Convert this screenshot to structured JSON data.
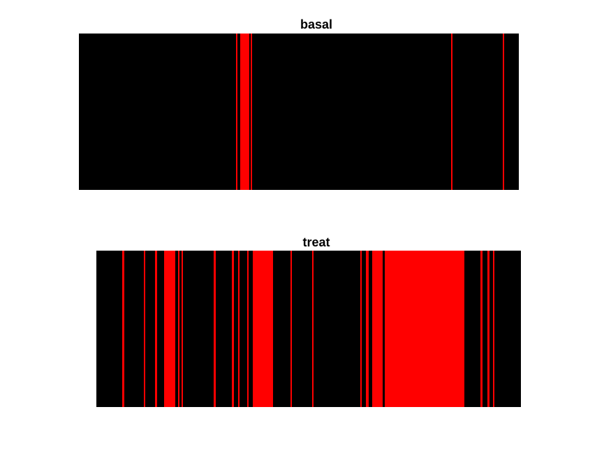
{
  "chart_data": [
    {
      "type": "heatmap",
      "title": "basal",
      "xlabel": "",
      "ylabel": "",
      "x_range": [
        0,
        630
      ],
      "background_color": "#000000",
      "event_color": "#ff0000",
      "grid": false,
      "events": [
        {
          "start": 225,
          "end": 227
        },
        {
          "start": 231,
          "end": 244
        },
        {
          "start": 246,
          "end": 248
        },
        {
          "start": 533,
          "end": 535
        },
        {
          "start": 607,
          "end": 609
        }
      ]
    },
    {
      "type": "heatmap",
      "title": "treat",
      "xlabel": "",
      "ylabel": "",
      "x_range": [
        0,
        608
      ],
      "background_color": "#000000",
      "event_color": "#ff0000",
      "grid": false,
      "events": [
        {
          "start": 37,
          "end": 40
        },
        {
          "start": 68,
          "end": 70
        },
        {
          "start": 84,
          "end": 87
        },
        {
          "start": 97,
          "end": 113
        },
        {
          "start": 117,
          "end": 119
        },
        {
          "start": 122,
          "end": 124
        },
        {
          "start": 168,
          "end": 171
        },
        {
          "start": 194,
          "end": 197
        },
        {
          "start": 203,
          "end": 205
        },
        {
          "start": 216,
          "end": 218
        },
        {
          "start": 224,
          "end": 253
        },
        {
          "start": 278,
          "end": 280
        },
        {
          "start": 309,
          "end": 311
        },
        {
          "start": 378,
          "end": 380
        },
        {
          "start": 386,
          "end": 390
        },
        {
          "start": 395,
          "end": 410
        },
        {
          "start": 413,
          "end": 527
        },
        {
          "start": 550,
          "end": 553
        },
        {
          "start": 560,
          "end": 563
        },
        {
          "start": 568,
          "end": 570
        }
      ]
    }
  ]
}
